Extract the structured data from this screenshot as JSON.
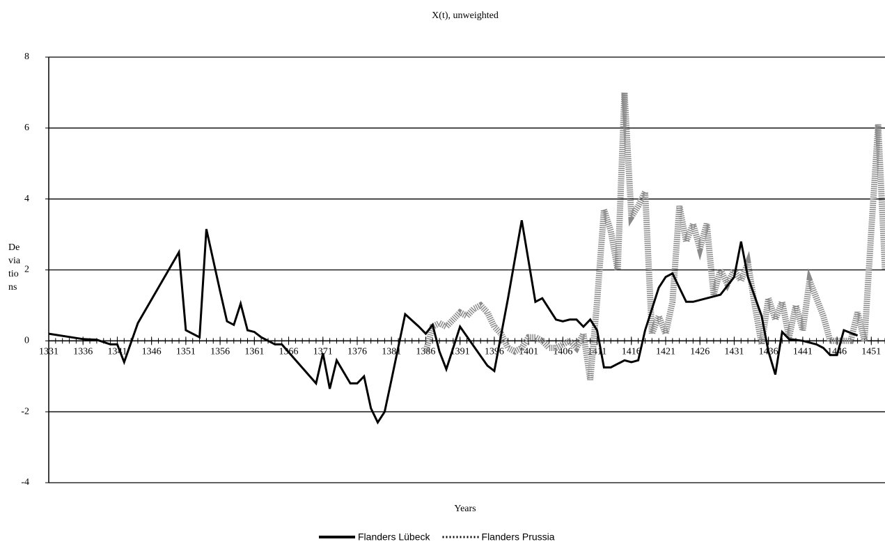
{
  "chart_data": {
    "type": "line",
    "title": "X(t), unweighted",
    "x_label": "Years",
    "y_label": [
      "De",
      "via",
      "tio",
      "ns"
    ],
    "xlim": [
      1331,
      1453
    ],
    "xticks": [
      1331,
      1336,
      1341,
      1346,
      1351,
      1356,
      1361,
      1366,
      1371,
      1376,
      1381,
      1386,
      1391,
      1396,
      1401,
      1406,
      1411,
      1416,
      1421,
      1426,
      1431,
      1436,
      1441,
      1446,
      1451
    ],
    "ylim": [
      -4,
      8
    ],
    "yticks": [
      -4,
      -2,
      0,
      2,
      4,
      6,
      8
    ],
    "grid": true,
    "legend": "bottom",
    "series": [
      {
        "name": "Flanders Lübeck",
        "color": "#000000",
        "style": "solid",
        "x": [
          1331,
          1336,
          1338,
          1340,
          1341,
          1342,
          1344,
          1350,
          1351,
          1353,
          1354,
          1356,
          1357,
          1358,
          1359,
          1360,
          1361,
          1362,
          1364,
          1365,
          1370,
          1371,
          1372,
          1373,
          1375,
          1376,
          1377,
          1378,
          1379,
          1380,
          1381,
          1383,
          1385,
          1386,
          1387,
          1388,
          1389,
          1391,
          1395,
          1396,
          1398,
          1400,
          1402,
          1403,
          1405,
          1406,
          1407,
          1408,
          1409,
          1410,
          1411,
          1412,
          1413,
          1415,
          1416,
          1417,
          1418,
          1420,
          1421,
          1422,
          1423,
          1424,
          1425,
          1427,
          1429,
          1431,
          1432,
          1433,
          1435,
          1436,
          1437,
          1438,
          1439,
          1441,
          1443,
          1444,
          1445,
          1446,
          1447,
          1449
        ],
        "values": [
          0.2,
          0.05,
          0.03,
          -0.1,
          -0.1,
          -0.6,
          0.5,
          2.5,
          0.3,
          0.1,
          3.15,
          1.4,
          0.55,
          0.45,
          1.05,
          0.3,
          0.25,
          0.1,
          -0.1,
          -0.1,
          -1.2,
          -0.35,
          -1.35,
          -0.55,
          -1.2,
          -1.2,
          -1.0,
          -1.9,
          -2.3,
          -2.0,
          -1.1,
          0.75,
          0.4,
          0.2,
          0.45,
          -0.3,
          -0.8,
          0.4,
          -0.7,
          -0.85,
          1.2,
          3.4,
          1.1,
          1.2,
          0.6,
          0.55,
          0.6,
          0.6,
          0.4,
          0.6,
          0.3,
          -0.75,
          -0.75,
          -0.55,
          -0.6,
          -0.55,
          0.3,
          1.5,
          1.8,
          1.9,
          1.5,
          1.1,
          1.1,
          1.2,
          1.3,
          1.8,
          2.8,
          1.8,
          0.7,
          -0.3,
          -0.95,
          0.25,
          0.05,
          0.0,
          -0.1,
          -0.2,
          -0.4,
          -0.4,
          0.3,
          0.15
        ]
      },
      {
        "name": "Flanders Prussia",
        "color": "#8a8a8a",
        "style": "dotted",
        "x": [
          1386,
          1387,
          1388,
          1389,
          1390,
          1391,
          1392,
          1393,
          1394,
          1395,
          1396,
          1397,
          1398,
          1399,
          1400,
          1401,
          1402,
          1403,
          1404,
          1405,
          1406,
          1407,
          1408,
          1409,
          1410,
          1411,
          1412,
          1413,
          1414,
          1415,
          1416,
          1417,
          1418,
          1419,
          1420,
          1421,
          1422,
          1423,
          1424,
          1425,
          1426,
          1427,
          1428,
          1429,
          1430,
          1431,
          1432,
          1433,
          1434,
          1435,
          1436,
          1437,
          1438,
          1439,
          1440,
          1441,
          1442,
          1443,
          1444,
          1445,
          1448,
          1449,
          1450,
          1451,
          1452,
          1453
        ],
        "values": [
          -0.3,
          0.4,
          0.5,
          0.4,
          0.6,
          0.8,
          0.7,
          0.9,
          1.0,
          0.8,
          0.4,
          0.2,
          -0.2,
          -0.3,
          -0.2,
          0.1,
          0.1,
          0.0,
          -0.2,
          -0.2,
          -0.1,
          0.0,
          -0.2,
          0.2,
          -1.1,
          1.1,
          3.7,
          3.1,
          2.0,
          7.0,
          3.5,
          3.8,
          4.2,
          0.2,
          0.7,
          0.2,
          1.1,
          3.8,
          2.8,
          3.3,
          2.6,
          3.3,
          1.3,
          2.0,
          1.6,
          2.0,
          1.7,
          2.2,
          1.0,
          -0.1,
          1.2,
          0.6,
          1.1,
          0.1,
          1.0,
          0.3,
          1.7,
          1.2,
          0.7,
          0.0,
          0.0,
          0.8,
          0.0,
          3.1,
          6.1,
          2.0
        ]
      }
    ]
  }
}
